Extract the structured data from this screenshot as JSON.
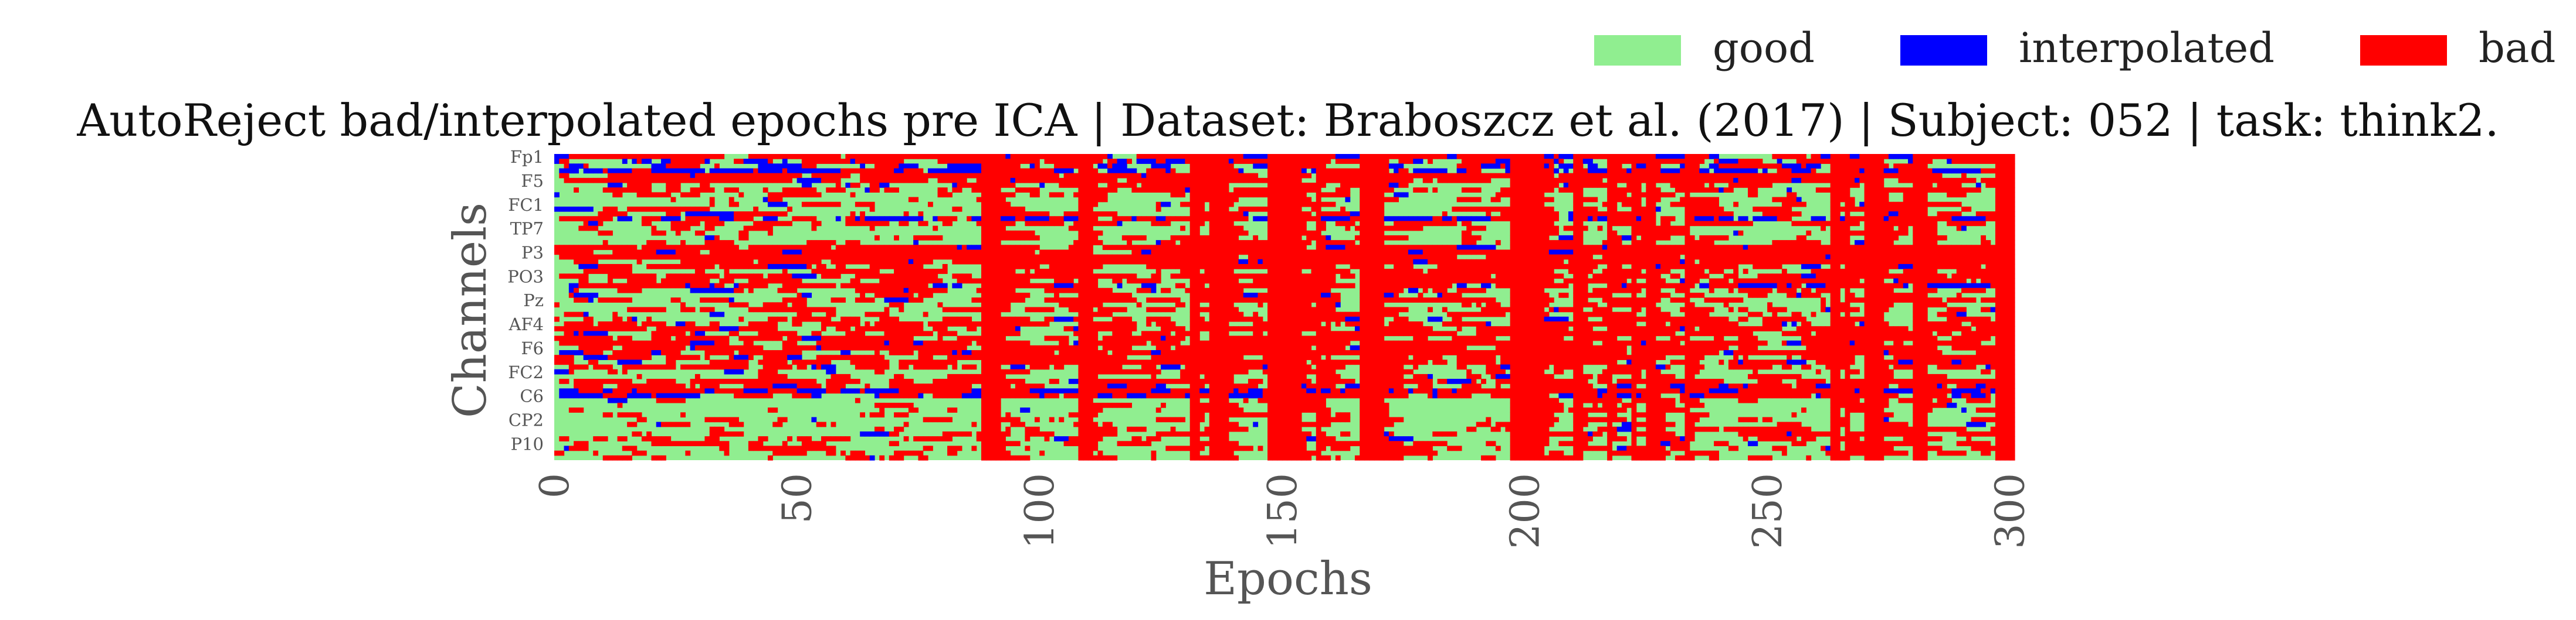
{
  "chart_data": {
    "type": "heatmap",
    "title": "AutoReject bad/interpolated epochs pre ICA | Dataset: Braboszcz et al. (2017) | Subject: 052 | task: think2.",
    "xlabel": "Epochs",
    "ylabel": "Channels",
    "xlim": [
      0,
      301
    ],
    "x_ticks": [
      "0",
      "50",
      "100",
      "150",
      "200",
      "250",
      "300"
    ],
    "y_tick_labels": [
      "Fp1",
      "F5",
      "FC1",
      "TP7",
      "P3",
      "PO3",
      "Pz",
      "AF4",
      "F6",
      "FC2",
      "C6",
      "CP2",
      "P10"
    ],
    "n_epochs": 301,
    "n_channels": 64,
    "legend_position": "top-right",
    "legend": [
      {
        "label": "good",
        "color": "#90ee90"
      },
      {
        "label": "interpolated",
        "color": "#0000ff"
      },
      {
        "label": "bad",
        "color": "#ff0000"
      }
    ],
    "fully_bad_epochs": [
      88,
      89,
      90,
      91,
      108,
      109,
      110,
      131,
      132,
      135,
      136,
      137,
      138,
      147,
      148,
      149,
      150,
      151,
      152,
      153,
      157,
      166,
      167,
      168,
      169,
      170,
      197,
      198,
      199,
      200,
      201,
      202,
      203,
      210,
      211,
      217,
      222,
      225,
      226,
      233,
      263,
      264,
      266,
      270,
      271,
      272,
      273,
      280,
      281,
      282,
      297,
      298,
      299,
      300
    ],
    "row_fraction_bad": [
      0.7,
      0.55,
      0.2,
      0.15,
      0.8,
      0.85,
      0.3,
      0.45,
      0.25,
      0.15,
      0.2,
      0.2,
      0.35,
      0.4,
      0.6,
      0.25,
      0.1,
      0.25,
      0.35,
      0.85,
      0.85,
      0.85,
      0.85,
      0.65,
      0.5,
      0.75,
      0.6,
      0.5,
      0.35,
      0.3,
      0.55,
      0.2,
      0.45,
      0.2,
      0.45,
      0.55,
      0.65,
      0.7,
      0.6,
      0.75,
      0.75,
      0.7,
      0.65,
      0.65,
      0.55,
      0.3,
      0.2,
      0.7,
      0.6,
      0.65,
      0.5,
      0.2,
      0.15,
      0.15,
      0.15,
      0.15,
      0.15,
      0.2,
      0.35,
      0.3,
      0.35,
      0.3,
      0.25,
      0.25
    ],
    "row_fraction_interpolated": [
      0.15,
      0.2,
      0.3,
      0.6,
      0.05,
      0.05,
      0.1,
      0.05,
      0.02,
      0.02,
      0.02,
      0.02,
      0.03,
      0.35,
      0.05,
      0.02,
      0.02,
      0.02,
      0.03,
      0.05,
      0.02,
      0.03,
      0.05,
      0.05,
      0.04,
      0.04,
      0.03,
      0.3,
      0.05,
      0.05,
      0.05,
      0.02,
      0.04,
      0.03,
      0.04,
      0.05,
      0.04,
      0.05,
      0.04,
      0.05,
      0.03,
      0.1,
      0.05,
      0.06,
      0.05,
      0.03,
      0.02,
      0.03,
      0.12,
      0.45,
      0.3,
      0.02,
      0.02,
      0.02,
      0.02,
      0.02,
      0.02,
      0.02,
      0.04,
      0.03,
      0.03,
      0.03,
      0.02,
      0.02
    ]
  }
}
